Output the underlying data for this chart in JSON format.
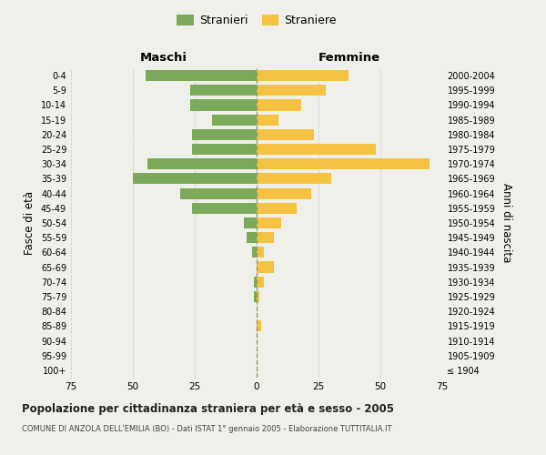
{
  "age_groups": [
    "100+",
    "95-99",
    "90-94",
    "85-89",
    "80-84",
    "75-79",
    "70-74",
    "65-69",
    "60-64",
    "55-59",
    "50-54",
    "45-49",
    "40-44",
    "35-39",
    "30-34",
    "25-29",
    "20-24",
    "15-19",
    "10-14",
    "5-9",
    "0-4"
  ],
  "birth_years": [
    "≤ 1904",
    "1905-1909",
    "1910-1914",
    "1915-1919",
    "1920-1924",
    "1925-1929",
    "1930-1934",
    "1935-1939",
    "1940-1944",
    "1945-1949",
    "1950-1954",
    "1955-1959",
    "1960-1964",
    "1965-1969",
    "1970-1974",
    "1975-1979",
    "1980-1984",
    "1985-1989",
    "1990-1994",
    "1995-1999",
    "2000-2004"
  ],
  "males": [
    0,
    0,
    0,
    0,
    0,
    1,
    1,
    0,
    2,
    4,
    5,
    26,
    31,
    50,
    44,
    26,
    26,
    18,
    27,
    27,
    45
  ],
  "females": [
    0,
    0,
    0,
    2,
    0,
    1,
    3,
    7,
    3,
    7,
    10,
    16,
    22,
    30,
    70,
    48,
    23,
    9,
    18,
    28,
    37
  ],
  "male_color": "#7aaa5a",
  "female_color": "#f5c242",
  "background_color": "#f0f0eb",
  "grid_color": "#cccccc",
  "title": "Popolazione per cittadinanza straniera per età e sesso - 2005",
  "subtitle": "COMUNE DI ANZOLA DELL'EMILIA (BO) - Dati ISTAT 1° gennaio 2005 - Elaborazione TUTTITALIA.IT",
  "xlabel_left": "Maschi",
  "xlabel_right": "Femmine",
  "ylabel_left": "Fasce di età",
  "ylabel_right": "Anni di nascita",
  "xlim": 75,
  "legend_labels": [
    "Stranieri",
    "Straniere"
  ]
}
